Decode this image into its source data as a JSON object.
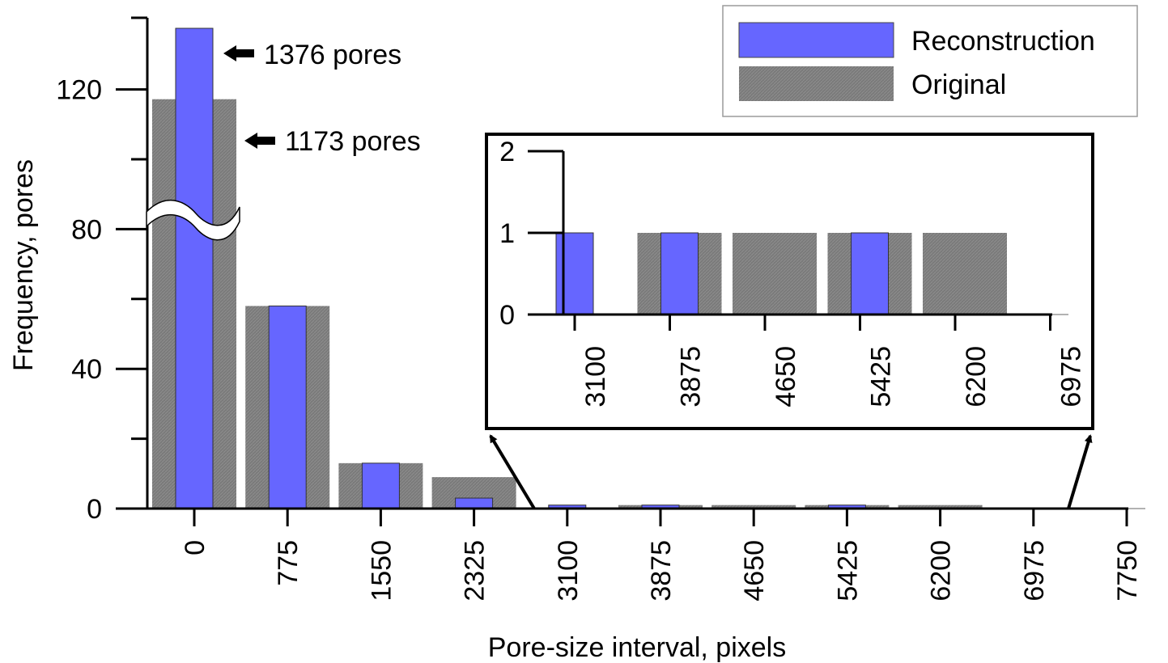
{
  "chart_data": [
    {
      "type": "bar",
      "xlabel": "Pore-size interval, pixels",
      "ylabel": "Frequency, pores",
      "ylim": [
        0,
        140
      ],
      "y_ticks": [
        "0",
        "40",
        "80",
        "120"
      ],
      "x_ticks": [
        "0",
        "775",
        "1550",
        "2325",
        "3100",
        "3875",
        "4650",
        "5425",
        "6200",
        "6975",
        "7750"
      ],
      "axis_break": "between 80 and 120 on the first bar group",
      "grid": false,
      "legend_position": "top-right",
      "categories": [
        "0",
        "775",
        "1550",
        "2325",
        "3100",
        "3875",
        "4650",
        "5425",
        "6200",
        "6975"
      ],
      "series": [
        {
          "name": "Reconstruction",
          "color": "#6666ff",
          "values": [
            1376,
            58,
            13,
            3,
            1,
            1,
            0,
            1,
            0,
            0
          ]
        },
        {
          "name": "Original",
          "color": "#808080",
          "values": [
            1173,
            58,
            13,
            9,
            0,
            1,
            1,
            1,
            1,
            0
          ]
        }
      ],
      "annotations": [
        {
          "text": "1376 pores",
          "series": "Reconstruction",
          "category": "0"
        },
        {
          "text": "1173 pores",
          "series": "Original",
          "category": "0"
        }
      ]
    },
    {
      "type": "bar",
      "ylim": [
        0,
        2
      ],
      "y_ticks": [
        "0",
        "1",
        "2"
      ],
      "x_ticks": [
        "3100",
        "3875",
        "4650",
        "5425",
        "6200",
        "6975"
      ],
      "categories": [
        "3100",
        "3875",
        "4650",
        "5425",
        "6200"
      ],
      "series": [
        {
          "name": "Reconstruction",
          "color": "#6666ff",
          "values": [
            1,
            1,
            0,
            1,
            0
          ]
        },
        {
          "name": "Original",
          "color": "#808080",
          "values": [
            0,
            1,
            1,
            1,
            1
          ]
        }
      ]
    }
  ]
}
